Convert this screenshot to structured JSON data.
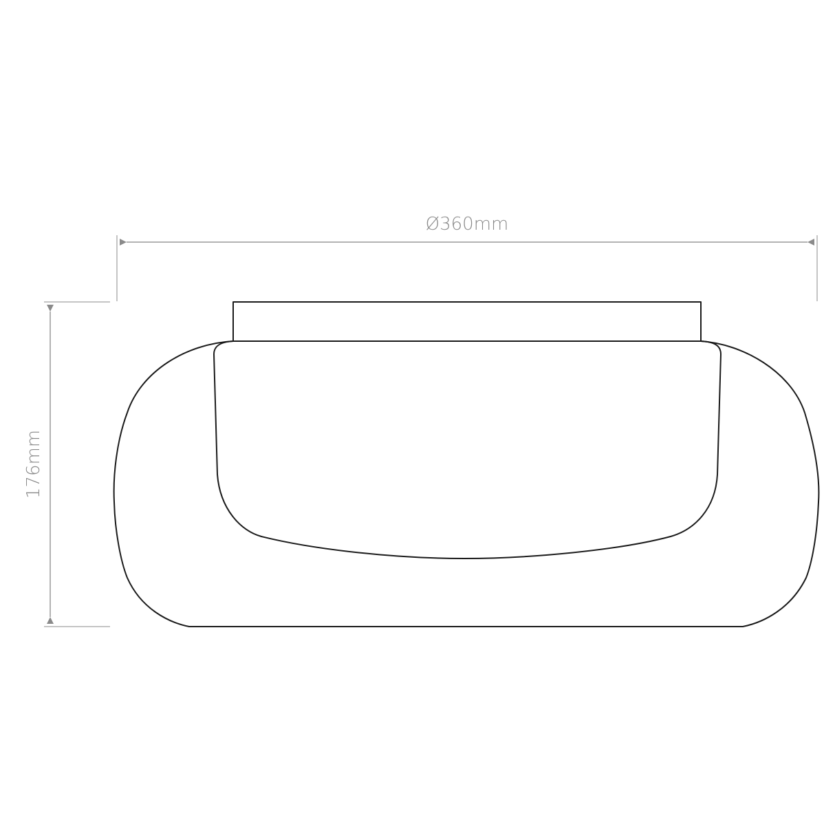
{
  "dimensions": {
    "width_label": "Ø360mm",
    "height_label": "176mm"
  },
  "colors": {
    "outline": "#1a1a1a",
    "dimension": "#9a9a9a"
  }
}
